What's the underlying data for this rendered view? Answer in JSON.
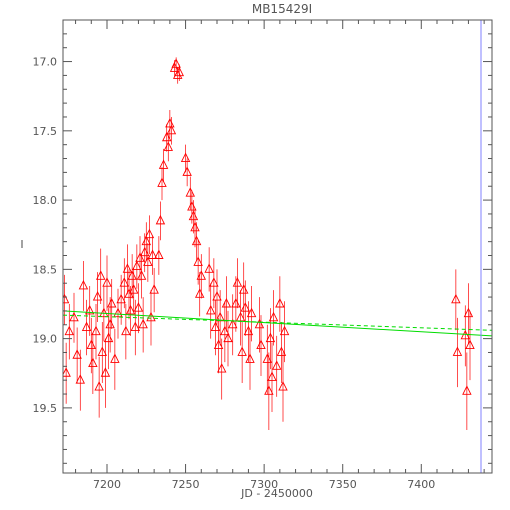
{
  "chart_data": {
    "type": "scatter",
    "title": "MB15429I",
    "xlabel": "JD - 2450000",
    "ylabel": "I",
    "xlim": [
      7172,
      7445
    ],
    "ylim": [
      19.97,
      16.7
    ],
    "y_inverted": true,
    "x_ticks": [
      7200,
      7250,
      7300,
      7350,
      7400
    ],
    "y_ticks": [
      17.0,
      17.5,
      18.0,
      18.5,
      19.0,
      19.5
    ],
    "x_tick_labels": [
      "7200",
      "7250",
      "7300",
      "7350",
      "7400"
    ],
    "y_tick_labels": [
      "17.0",
      "17.5",
      "18.0",
      "18.5",
      "19.0",
      "19.5"
    ],
    "grid": false,
    "legend": "none",
    "colors": {
      "data": "#ff0000",
      "model": "#00dd00",
      "vline": "#8080ff",
      "axes": "#555555"
    },
    "vertical_line_x": 7438,
    "model_solid": {
      "x": [
        7172,
        7445
      ],
      "y": [
        18.8,
        18.98
      ]
    },
    "model_dashed": {
      "x": [
        7172,
        7445
      ],
      "y": [
        18.83,
        18.94
      ]
    },
    "series": [
      {
        "marker": "open-triangle",
        "points": [
          {
            "x": 7173,
            "y": 18.72,
            "err": 0.18
          },
          {
            "x": 7174,
            "y": 19.25,
            "err": 0.22
          },
          {
            "x": 7176,
            "y": 18.95,
            "err": 0.2
          },
          {
            "x": 7179,
            "y": 18.85,
            "err": 0.18
          },
          {
            "x": 7181,
            "y": 19.12,
            "err": 0.2
          },
          {
            "x": 7183,
            "y": 19.3,
            "err": 0.22
          },
          {
            "x": 7185,
            "y": 18.62,
            "err": 0.18
          },
          {
            "x": 7187,
            "y": 18.92,
            "err": 0.2
          },
          {
            "x": 7189,
            "y": 18.8,
            "err": 0.18
          },
          {
            "x": 7190,
            "y": 19.05,
            "err": 0.2
          },
          {
            "x": 7191,
            "y": 19.18,
            "err": 0.22
          },
          {
            "x": 7193,
            "y": 18.95,
            "err": 0.2
          },
          {
            "x": 7194,
            "y": 18.7,
            "err": 0.18
          },
          {
            "x": 7195,
            "y": 19.35,
            "err": 0.22
          },
          {
            "x": 7196,
            "y": 18.55,
            "err": 0.2
          },
          {
            "x": 7197,
            "y": 19.1,
            "err": 0.22
          },
          {
            "x": 7198,
            "y": 18.82,
            "err": 0.2
          },
          {
            "x": 7199,
            "y": 19.25,
            "err": 0.25
          },
          {
            "x": 7200,
            "y": 18.6,
            "err": 0.2
          },
          {
            "x": 7201,
            "y": 19.0,
            "err": 0.22
          },
          {
            "x": 7202,
            "y": 18.9,
            "err": 0.2
          },
          {
            "x": 7203,
            "y": 18.75,
            "err": 0.18
          },
          {
            "x": 7205,
            "y": 19.15,
            "err": 0.22
          },
          {
            "x": 7207,
            "y": 18.82,
            "err": 0.18
          },
          {
            "x": 7209,
            "y": 18.72,
            "err": 0.18
          },
          {
            "x": 7211,
            "y": 18.6,
            "err": 0.18
          },
          {
            "x": 7212,
            "y": 18.95,
            "err": 0.2
          },
          {
            "x": 7213,
            "y": 18.5,
            "err": 0.18
          },
          {
            "x": 7214,
            "y": 18.68,
            "err": 0.18
          },
          {
            "x": 7215,
            "y": 18.8,
            "err": 0.18
          },
          {
            "x": 7216,
            "y": 18.55,
            "err": 0.16
          },
          {
            "x": 7217,
            "y": 18.65,
            "err": 0.16
          },
          {
            "x": 7218,
            "y": 18.92,
            "err": 0.2
          },
          {
            "x": 7219,
            "y": 18.48,
            "err": 0.16
          },
          {
            "x": 7220,
            "y": 18.78,
            "err": 0.18
          },
          {
            "x": 7221,
            "y": 18.42,
            "err": 0.16
          },
          {
            "x": 7222,
            "y": 18.55,
            "err": 0.16
          },
          {
            "x": 7223,
            "y": 18.9,
            "err": 0.2
          },
          {
            "x": 7224,
            "y": 18.38,
            "err": 0.14
          },
          {
            "x": 7225,
            "y": 18.3,
            "err": 0.14
          },
          {
            "x": 7226,
            "y": 18.45,
            "err": 0.14
          },
          {
            "x": 7227,
            "y": 18.25,
            "err": 0.14
          },
          {
            "x": 7228,
            "y": 18.85,
            "err": 0.2
          },
          {
            "x": 7229,
            "y": 18.4,
            "err": 0.14
          },
          {
            "x": 7230,
            "y": 18.65,
            "err": 0.16
          },
          {
            "x": 7233,
            "y": 18.4,
            "err": 0.14
          },
          {
            "x": 7234,
            "y": 18.15,
            "err": 0.14
          },
          {
            "x": 7235,
            "y": 17.88,
            "err": 0.12
          },
          {
            "x": 7236,
            "y": 17.75,
            "err": 0.12
          },
          {
            "x": 7238,
            "y": 17.55,
            "err": 0.1
          },
          {
            "x": 7239,
            "y": 17.62,
            "err": 0.1
          },
          {
            "x": 7240,
            "y": 17.45,
            "err": 0.1
          },
          {
            "x": 7241,
            "y": 17.5,
            "err": 0.1
          },
          {
            "x": 7243,
            "y": 17.05,
            "err": 0.06
          },
          {
            "x": 7244,
            "y": 17.02,
            "err": 0.05
          },
          {
            "x": 7245,
            "y": 17.1,
            "err": 0.06
          },
          {
            "x": 7246,
            "y": 17.08,
            "err": 0.06
          },
          {
            "x": 7250,
            "y": 17.7,
            "err": 0.1
          },
          {
            "x": 7251,
            "y": 17.8,
            "err": 0.1
          },
          {
            "x": 7253,
            "y": 17.95,
            "err": 0.12
          },
          {
            "x": 7254,
            "y": 18.05,
            "err": 0.12
          },
          {
            "x": 7255,
            "y": 18.12,
            "err": 0.12
          },
          {
            "x": 7256,
            "y": 18.2,
            "err": 0.14
          },
          {
            "x": 7257,
            "y": 18.3,
            "err": 0.14
          },
          {
            "x": 7258,
            "y": 18.45,
            "err": 0.16
          },
          {
            "x": 7259,
            "y": 18.68,
            "err": 0.16
          },
          {
            "x": 7260,
            "y": 18.55,
            "err": 0.16
          },
          {
            "x": 7265,
            "y": 18.5,
            "err": 0.16
          },
          {
            "x": 7266,
            "y": 18.8,
            "err": 0.2
          },
          {
            "x": 7268,
            "y": 18.6,
            "err": 0.18
          },
          {
            "x": 7269,
            "y": 18.92,
            "err": 0.2
          },
          {
            "x": 7270,
            "y": 18.7,
            "err": 0.2
          },
          {
            "x": 7271,
            "y": 19.05,
            "err": 0.2
          },
          {
            "x": 7272,
            "y": 18.85,
            "err": 0.2
          },
          {
            "x": 7273,
            "y": 19.22,
            "err": 0.22
          },
          {
            "x": 7275,
            "y": 18.95,
            "err": 0.22
          },
          {
            "x": 7276,
            "y": 18.75,
            "err": 0.2
          },
          {
            "x": 7277,
            "y": 19.0,
            "err": 0.2
          },
          {
            "x": 7280,
            "y": 18.9,
            "err": 0.22
          },
          {
            "x": 7282,
            "y": 18.75,
            "err": 0.2
          },
          {
            "x": 7283,
            "y": 18.6,
            "err": 0.18
          },
          {
            "x": 7285,
            "y": 18.85,
            "err": 0.2
          },
          {
            "x": 7286,
            "y": 19.1,
            "err": 0.22
          },
          {
            "x": 7287,
            "y": 18.65,
            "err": 0.2
          },
          {
            "x": 7288,
            "y": 18.78,
            "err": 0.2
          },
          {
            "x": 7290,
            "y": 18.95,
            "err": 0.22
          },
          {
            "x": 7291,
            "y": 19.15,
            "err": 0.22
          },
          {
            "x": 7292,
            "y": 18.82,
            "err": 0.2
          },
          {
            "x": 7297,
            "y": 18.9,
            "err": 0.2
          },
          {
            "x": 7298,
            "y": 19.05,
            "err": 0.22
          },
          {
            "x": 7302,
            "y": 19.15,
            "err": 0.25
          },
          {
            "x": 7303,
            "y": 19.38,
            "err": 0.28
          },
          {
            "x": 7304,
            "y": 19.0,
            "err": 0.22
          },
          {
            "x": 7305,
            "y": 19.28,
            "err": 0.25
          },
          {
            "x": 7306,
            "y": 18.85,
            "err": 0.2
          },
          {
            "x": 7308,
            "y": 19.2,
            "err": 0.22
          },
          {
            "x": 7310,
            "y": 18.75,
            "err": 0.2
          },
          {
            "x": 7311,
            "y": 19.1,
            "err": 0.22
          },
          {
            "x": 7312,
            "y": 19.35,
            "err": 0.25
          },
          {
            "x": 7313,
            "y": 18.95,
            "err": 0.22
          },
          {
            "x": 7422,
            "y": 18.72,
            "err": 0.22
          },
          {
            "x": 7423,
            "y": 19.1,
            "err": 0.25
          },
          {
            "x": 7428,
            "y": 18.98,
            "err": 0.22
          },
          {
            "x": 7429,
            "y": 19.38,
            "err": 0.28
          },
          {
            "x": 7430,
            "y": 18.82,
            "err": 0.22
          },
          {
            "x": 7431,
            "y": 19.05,
            "err": 0.25
          }
        ]
      }
    ]
  }
}
